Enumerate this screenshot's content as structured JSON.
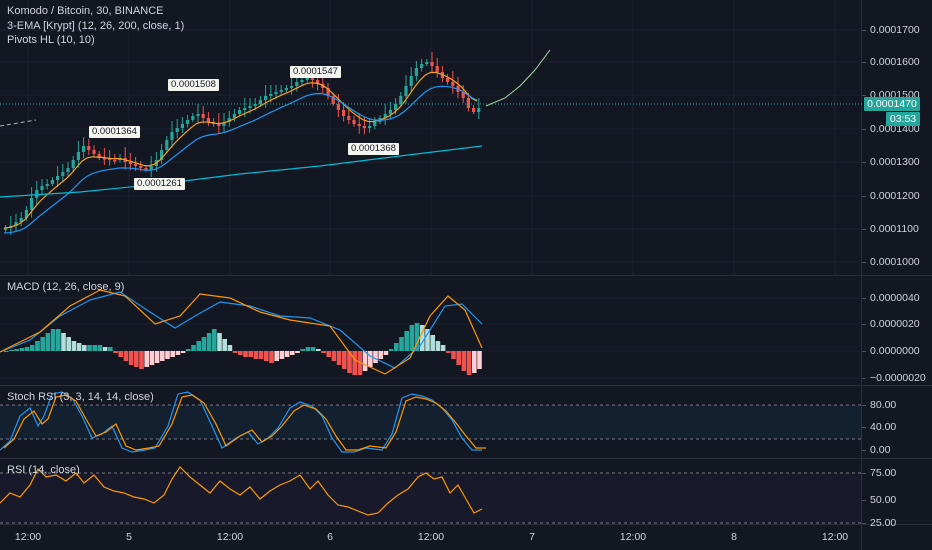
{
  "header": {
    "symbol_line": "Komodo / Bitcoin, 30, BINANCE",
    "ema_line": "3-EMA [Krypt] (12, 26, 200, close, 1)",
    "pivots_line": "Pivots HL (10, 10)"
  },
  "price_axis": {
    "ticks": [
      "0.0001700",
      "0.0001600",
      "0.0001500",
      "0.0001400",
      "0.0001300",
      "0.0001200",
      "0.0001100",
      "0.0001000"
    ],
    "current_price": "0.0001470",
    "countdown": "03:53"
  },
  "pivots": [
    "0.0001364",
    "0.0001508",
    "0.0001547",
    "0.0001261",
    "0.0001368"
  ],
  "macd": {
    "title": "MACD (12, 26, close, 9)",
    "ticks": [
      "0.0000040",
      "0.0000020",
      "0.0000000",
      "−0.0000020"
    ]
  },
  "stoch": {
    "title": "Stoch RSI (3, 3, 14, 14, close)",
    "ticks": [
      "80.00",
      "40.00",
      "0.00"
    ]
  },
  "rsi": {
    "title": "RSI (14, close)",
    "ticks": [
      "75.00",
      "50.00",
      "25.00"
    ]
  },
  "time_axis": [
    "12:00",
    "5",
    "12:00",
    "6",
    "12:00",
    "7",
    "12:00",
    "8",
    "12:00"
  ],
  "colors": {
    "background": "#131722",
    "up": "#26a69a",
    "down": "#ef5350",
    "ema_fast": "#f7a21b",
    "ema_mid": "#2196f3",
    "ema_slow": "#00bcd4",
    "macd_line": "#2196f3",
    "signal_line": "#ff9800",
    "rsi_line": "#ff9800"
  }
}
